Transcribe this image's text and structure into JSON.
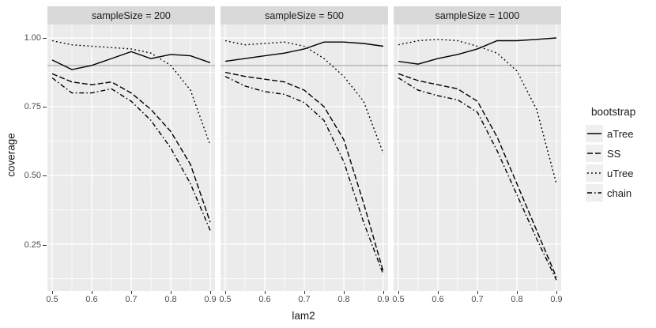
{
  "chart_data": {
    "type": "line",
    "title": "",
    "xlabel": "lam2",
    "ylabel": "coverage",
    "x": [
      0.5,
      0.55,
      0.6,
      0.65,
      0.7,
      0.75,
      0.8,
      0.85,
      0.9
    ],
    "x_ticks": [
      "0.5",
      "0.6",
      "0.7",
      "0.8",
      "0.9"
    ],
    "x_tick_values": [
      0.5,
      0.6,
      0.7,
      0.8,
      0.9
    ],
    "y_ticks": [
      "1.00",
      "0.75",
      "0.50",
      "0.25"
    ],
    "y_tick_values": [
      1.0,
      0.75,
      0.5,
      0.25
    ],
    "x_minor": [
      0.55,
      0.65,
      0.75,
      0.85
    ],
    "y_minor": [
      0.875,
      0.625,
      0.375,
      0.125
    ],
    "xlim": [
      0.488,
      0.912
    ],
    "ylim": [
      0.0805,
      1.0489
    ],
    "grid": true,
    "reference_line_y": 0.9,
    "panel_bg": "#EBEBEB",
    "strip_bg": "#D9D9D9",
    "grid_color": "#FFFFFF",
    "ref_line_color": "#A6A6A6",
    "line_color": "#000000",
    "legend": {
      "title": "bootstrap",
      "position": "right",
      "entries": [
        {
          "name": "aTree",
          "linetype": "solid"
        },
        {
          "name": "SS",
          "linetype": "dashed"
        },
        {
          "name": "uTree",
          "linetype": "dotted"
        },
        {
          "name": "chain",
          "linetype": "dotdash"
        }
      ]
    },
    "facets": [
      {
        "label": "sampleSize = 200",
        "series": [
          {
            "name": "aTree",
            "values": [
              0.92,
              0.885,
              0.9,
              0.925,
              0.95,
              0.925,
              0.94,
              0.935,
              0.91
            ]
          },
          {
            "name": "SS",
            "values": [
              0.87,
              0.84,
              0.83,
              0.84,
              0.8,
              0.74,
              0.66,
              0.54,
              0.33
            ]
          },
          {
            "name": "uTree",
            "values": [
              0.99,
              0.975,
              0.97,
              0.965,
              0.96,
              0.945,
              0.9,
              0.81,
              0.61
            ]
          },
          {
            "name": "chain",
            "values": [
              0.855,
              0.8,
              0.8,
              0.815,
              0.77,
              0.7,
              0.6,
              0.47,
              0.3
            ]
          }
        ]
      },
      {
        "label": "sampleSize = 500",
        "series": [
          {
            "name": "aTree",
            "values": [
              0.915,
              0.925,
              0.935,
              0.945,
              0.96,
              0.985,
              0.985,
              0.98,
              0.97
            ]
          },
          {
            "name": "SS",
            "values": [
              0.875,
              0.86,
              0.85,
              0.84,
              0.81,
              0.75,
              0.63,
              0.4,
              0.15
            ]
          },
          {
            "name": "uTree",
            "values": [
              0.99,
              0.975,
              0.98,
              0.985,
              0.97,
              0.925,
              0.86,
              0.77,
              0.58
            ]
          },
          {
            "name": "chain",
            "values": [
              0.86,
              0.825,
              0.805,
              0.795,
              0.765,
              0.7,
              0.55,
              0.33,
              0.14
            ]
          }
        ]
      },
      {
        "label": "sampleSize = 1000",
        "series": [
          {
            "name": "aTree",
            "values": [
              0.915,
              0.905,
              0.925,
              0.94,
              0.96,
              0.99,
              0.99,
              0.995,
              1.0
            ]
          },
          {
            "name": "SS",
            "values": [
              0.87,
              0.845,
              0.83,
              0.815,
              0.77,
              0.64,
              0.47,
              0.3,
              0.13
            ]
          },
          {
            "name": "uTree",
            "values": [
              0.975,
              0.99,
              0.995,
              0.99,
              0.97,
              0.945,
              0.88,
              0.74,
              0.47
            ]
          },
          {
            "name": "chain",
            "values": [
              0.855,
              0.81,
              0.79,
              0.775,
              0.73,
              0.59,
              0.43,
              0.27,
              0.12
            ]
          }
        ]
      }
    ]
  }
}
